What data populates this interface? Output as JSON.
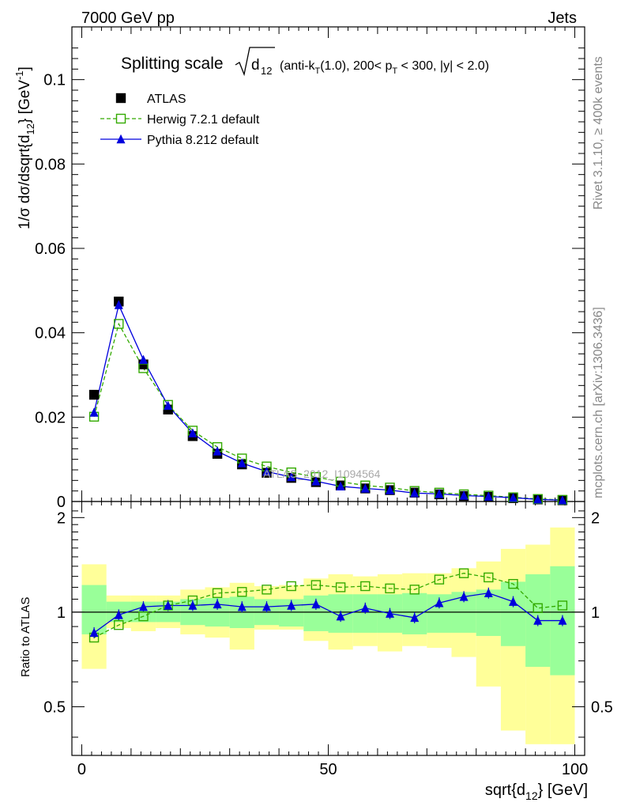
{
  "header": {
    "left": "7000 GeV pp",
    "right": "Jets"
  },
  "side_labels": {
    "rivet": "Rivet 3.1.10, ≥ 400k events",
    "mcplots": "mcplots.cern.ch [arXiv:1306.3436]"
  },
  "watermark": "ATLAS_2012_I1094564",
  "colors": {
    "atlas": "#000000",
    "herwig": "#33aa00",
    "pythia": "#0000dd",
    "band_inner": "#99ff99",
    "band_outer": "#ffff99"
  },
  "chart_data": [
    {
      "type": "scatter",
      "title_main": "Splitting scale",
      "title_sub": "(anti-k_T(1.0), 200< p_T < 300, |y| < 2.0)",
      "ylabel": "1/σ dσ/dsqrt{d_12} [GeV^-1]",
      "xlim": [
        -2,
        102
      ],
      "ylim": [
        0,
        0.1125
      ],
      "ytick_values": [
        0,
        0.02,
        0.04,
        0.06,
        0.08,
        0.1
      ],
      "ytick_labels": [
        "0",
        "0.02",
        "0.04",
        "0.06",
        "0.08",
        "0.1"
      ],
      "x": [
        2.5,
        7.5,
        12.5,
        17.5,
        22.5,
        27.5,
        32.5,
        37.5,
        42.5,
        47.5,
        52.5,
        57.5,
        62.5,
        67.5,
        72.5,
        77.5,
        82.5,
        87.5,
        92.5,
        97.5
      ],
      "series": [
        {
          "name": "ATLAS",
          "marker": "filled-square",
          "values": [
            0.0253,
            0.0474,
            0.0325,
            0.0218,
            0.0155,
            0.0113,
            0.0088,
            0.0068,
            0.0056,
            0.0046,
            0.0038,
            0.0031,
            0.0027,
            0.0021,
            0.0017,
            0.0013,
            0.0011,
            0.0008,
            0.0005,
            0.0003
          ]
        },
        {
          "name": "Herwig 7.2.1 default",
          "marker": "open-square",
          "values": [
            0.0201,
            0.0421,
            0.0316,
            0.0229,
            0.0168,
            0.0129,
            0.0102,
            0.0083,
            0.0069,
            0.0058,
            0.0047,
            0.0038,
            0.0033,
            0.0025,
            0.0021,
            0.0017,
            0.0014,
            0.001,
            0.0006,
            0.0004
          ]
        },
        {
          "name": "Pythia 8.212 default",
          "marker": "filled-triangle",
          "values": [
            0.0211,
            0.0466,
            0.0336,
            0.0227,
            0.0162,
            0.0119,
            0.0091,
            0.0071,
            0.0058,
            0.0048,
            0.0036,
            0.0031,
            0.0027,
            0.002,
            0.0018,
            0.0014,
            0.0012,
            0.0009,
            0.0005,
            0.0003
          ]
        }
      ]
    },
    {
      "type": "line",
      "ylabel": "Ratio to ATLAS",
      "xlabel": "sqrt{d_12} [GeV]",
      "xlim": [
        -2,
        102
      ],
      "ylim": [
        0.35,
        2.25
      ],
      "ytick_values": [
        0.5,
        1,
        2
      ],
      "ytick_labels": [
        "0.5",
        "1",
        "2"
      ],
      "xtick_values": [
        0,
        50,
        100
      ],
      "xtick_labels": [
        "0",
        "50",
        "100"
      ],
      "bin_edges": [
        0,
        5,
        10,
        15,
        20,
        25,
        30,
        35,
        40,
        45,
        50,
        55,
        60,
        65,
        70,
        75,
        80,
        85,
        90,
        95,
        100
      ],
      "band_inner": [
        [
          0.85,
          1.22
        ],
        [
          0.93,
          1.08
        ],
        [
          0.93,
          1.08
        ],
        [
          0.93,
          1.08
        ],
        [
          0.91,
          1.1
        ],
        [
          0.9,
          1.11
        ],
        [
          0.89,
          1.12
        ],
        [
          0.91,
          1.1
        ],
        [
          0.9,
          1.1
        ],
        [
          0.87,
          1.13
        ],
        [
          0.86,
          1.14
        ],
        [
          0.86,
          1.14
        ],
        [
          0.86,
          1.14
        ],
        [
          0.85,
          1.15
        ],
        [
          0.86,
          1.14
        ],
        [
          0.86,
          1.16
        ],
        [
          0.84,
          1.18
        ],
        [
          0.78,
          1.25
        ],
        [
          0.67,
          1.32
        ],
        [
          0.63,
          1.4
        ]
      ],
      "band_outer": [
        [
          0.66,
          1.42
        ],
        [
          0.89,
          1.13
        ],
        [
          0.87,
          1.13
        ],
        [
          0.89,
          1.13
        ],
        [
          0.85,
          1.18
        ],
        [
          0.83,
          1.2
        ],
        [
          0.76,
          1.24
        ],
        [
          0.88,
          1.21
        ],
        [
          0.88,
          1.22
        ],
        [
          0.81,
          1.28
        ],
        [
          0.76,
          1.32
        ],
        [
          0.78,
          1.3
        ],
        [
          0.75,
          1.32
        ],
        [
          0.78,
          1.33
        ],
        [
          0.77,
          1.33
        ],
        [
          0.72,
          1.38
        ],
        [
          0.58,
          1.45
        ],
        [
          0.42,
          1.59
        ],
        [
          0.38,
          1.64
        ],
        [
          0.38,
          1.86
        ]
      ],
      "series": [
        {
          "name": "Herwig 7.2.1 default",
          "values": [
            0.83,
            0.91,
            0.97,
            1.05,
            1.09,
            1.15,
            1.16,
            1.18,
            1.21,
            1.22,
            1.2,
            1.21,
            1.19,
            1.18,
            1.27,
            1.33,
            1.29,
            1.23,
            1.03,
            1.05
          ]
        },
        {
          "name": "Pythia 8.212 default",
          "values": [
            0.86,
            0.98,
            1.04,
            1.05,
            1.05,
            1.06,
            1.04,
            1.04,
            1.05,
            1.06,
            0.97,
            1.03,
            0.99,
            0.96,
            1.07,
            1.12,
            1.15,
            1.08,
            0.94,
            0.94
          ]
        }
      ]
    }
  ]
}
